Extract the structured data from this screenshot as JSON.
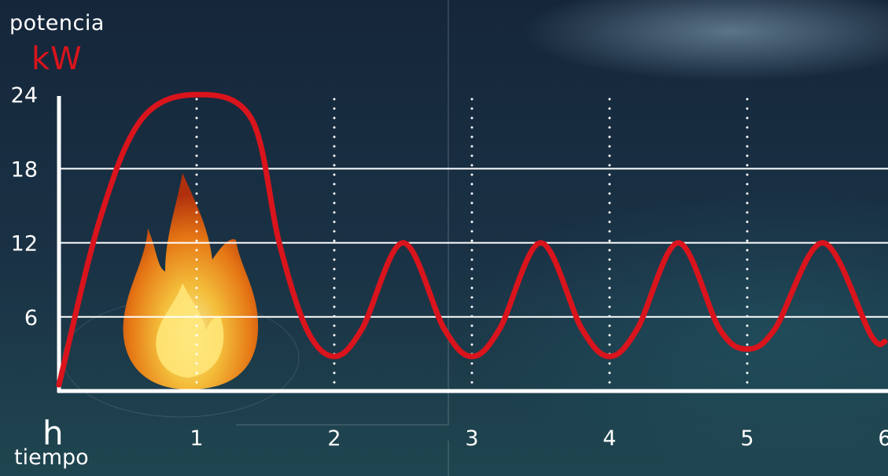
{
  "chart_data": {
    "type": "line",
    "ylabel": "potencia",
    "yunit": "kW",
    "xlabel": "tiempo",
    "xunit": "h",
    "y_ticks": [
      6,
      12,
      18,
      24
    ],
    "x_ticks": [
      1,
      2,
      3,
      4,
      5,
      6
    ],
    "xlim": [
      0,
      6
    ],
    "ylim": [
      0,
      24
    ],
    "grid": {
      "horizontal_lines": [
        6,
        12,
        18
      ],
      "vertical_dotted": [
        1,
        2,
        3,
        4,
        5
      ]
    },
    "series": [
      {
        "color": "#d9141c",
        "points": [
          [
            0.0,
            0.5
          ],
          [
            0.3,
            14
          ],
          [
            0.6,
            22
          ],
          [
            1.0,
            24
          ],
          [
            1.4,
            22
          ],
          [
            1.6,
            12
          ],
          [
            1.8,
            5
          ],
          [
            2.0,
            2.8
          ],
          [
            2.2,
            5
          ],
          [
            2.5,
            12
          ],
          [
            2.8,
            5
          ],
          [
            3.0,
            2.8
          ],
          [
            3.2,
            5
          ],
          [
            3.5,
            12
          ],
          [
            3.8,
            5
          ],
          [
            4.0,
            2.8
          ],
          [
            4.2,
            5
          ],
          [
            4.5,
            12
          ],
          [
            4.8,
            5
          ],
          [
            5.0,
            3.4
          ],
          [
            5.2,
            5
          ],
          [
            5.55,
            12
          ],
          [
            5.9,
            4.5
          ],
          [
            6.0,
            4.0
          ]
        ]
      }
    ]
  },
  "icons": {
    "flame": "flame-icon"
  }
}
